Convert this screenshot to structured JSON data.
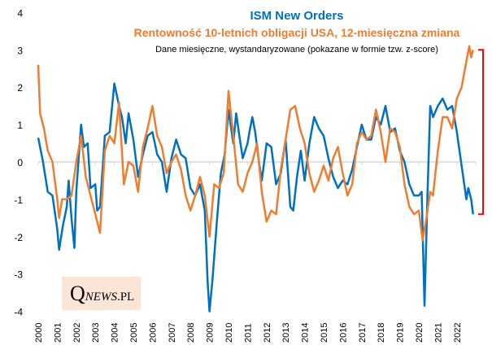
{
  "chart_data": {
    "type": "line",
    "title": "ISM New Orders",
    "subtitle": "Rentowność 10-letnich obligacji USA, 12-miesięczna zmiana",
    "note": "Dane miesięczne, wystandaryzowane (pokazane w formie tzw.  z-score)",
    "ylim": [
      -4,
      4
    ],
    "yticks": [
      "4",
      "3",
      "2",
      "1",
      "0",
      "-1",
      "-2",
      "-3",
      "-4"
    ],
    "xlim": [
      2000,
      2023
    ],
    "xticks": [
      "2000",
      "2001",
      "2002",
      "2003",
      "2004",
      "2005",
      "2006",
      "2007",
      "2008",
      "2009",
      "2010",
      "2011",
      "2012",
      "2013",
      "2014",
      "2015",
      "2016",
      "2017",
      "2018",
      "2019",
      "2020",
      "2021",
      "2022"
    ],
    "grid": false,
    "series": [
      {
        "name": "ISM New Orders",
        "color": "#0070c0",
        "x": [
          2000.0,
          2000.25,
          2000.5,
          2000.75,
          2001.0,
          2001.1,
          2001.3,
          2001.5,
          2001.6,
          2001.75,
          2001.9,
          2002.0,
          2002.25,
          2002.4,
          2002.6,
          2002.75,
          2003.0,
          2003.1,
          2003.25,
          2003.5,
          2003.75,
          2004.0,
          2004.25,
          2004.4,
          2004.6,
          2004.75,
          2005.0,
          2005.25,
          2005.5,
          2005.75,
          2006.0,
          2006.25,
          2006.5,
          2006.75,
          2007.0,
          2007.25,
          2007.5,
          2007.75,
          2008.0,
          2008.25,
          2008.5,
          2008.75,
          2008.9,
          2009.0,
          2009.15,
          2009.4,
          2009.6,
          2009.8,
          2010.0,
          2010.25,
          2010.4,
          2010.6,
          2010.75,
          2011.0,
          2011.1,
          2011.25,
          2011.4,
          2011.6,
          2011.75,
          2012.0,
          2012.25,
          2012.5,
          2012.75,
          2013.0,
          2013.25,
          2013.4,
          2013.6,
          2013.8,
          2014.0,
          2014.25,
          2014.5,
          2014.75,
          2015.0,
          2015.25,
          2015.5,
          2015.75,
          2016.0,
          2016.25,
          2016.5,
          2016.75,
          2017.0,
          2017.25,
          2017.5,
          2017.75,
          2018.0,
          2018.25,
          2018.5,
          2018.75,
          2019.0,
          2019.25,
          2019.5,
          2019.75,
          2020.0,
          2020.15,
          2020.3,
          2020.45,
          2020.6,
          2020.75,
          2021.0,
          2021.25,
          2021.5,
          2021.75,
          2022.0,
          2022.25,
          2022.5,
          2022.6,
          2022.75,
          2022.85
        ],
        "y": [
          0.65,
          0,
          -0.8,
          -0.9,
          -1.8,
          -2.35,
          -1.7,
          -1.2,
          -0.5,
          -1.5,
          -2.3,
          -0.8,
          1.0,
          0.4,
          0.5,
          -0.7,
          -0.6,
          -1.3,
          -1.2,
          0.7,
          0.8,
          2.1,
          1.5,
          1.2,
          0.5,
          1.3,
          0.6,
          -0.4,
          0.2,
          0.7,
          0.8,
          0.2,
          0.0,
          -0.8,
          0.1,
          0.6,
          0.2,
          0.1,
          -0.7,
          -0.9,
          -0.6,
          -1.3,
          -3.2,
          -4.0,
          -3.2,
          -1.5,
          -0.3,
          0.2,
          1.4,
          0.5,
          1.3,
          0.6,
          0.1,
          0.5,
          0.8,
          1.2,
          0.8,
          0.0,
          -0.5,
          0.5,
          0.4,
          -0.6,
          -0.3,
          0.6,
          -1.2,
          -1.3,
          -0.4,
          0.3,
          -0.5,
          0.5,
          1.2,
          0.9,
          0.7,
          0.1,
          -0.4,
          -0.7,
          -0.5,
          -0.6,
          -0.2,
          0.4,
          1.0,
          0.6,
          0.6,
          1.2,
          1.0,
          1.5,
          0.8,
          0.9,
          0.3,
          0.0,
          -0.6,
          -0.9,
          -0.9,
          -0.8,
          -3.85,
          -1.0,
          1.5,
          1.2,
          1.5,
          1.7,
          1.4,
          1.5,
          0.8,
          -0.1,
          -1.0,
          -0.7,
          -1.0,
          -1.4
        ]
      },
      {
        "name": "Rentowność 10-letnich obligacji USA, 12-miesięczna zmiana",
        "color": "#ed7d31",
        "x": [
          2000.0,
          2000.1,
          2000.3,
          2000.5,
          2000.75,
          2001.0,
          2001.1,
          2001.25,
          2001.5,
          2001.75,
          2002.0,
          2002.25,
          2002.5,
          2002.75,
          2003.0,
          2003.25,
          2003.5,
          2003.75,
          2004.0,
          2004.25,
          2004.5,
          2004.75,
          2005.0,
          2005.25,
          2005.5,
          2005.75,
          2006.0,
          2006.25,
          2006.5,
          2006.75,
          2007.0,
          2007.25,
          2007.5,
          2007.75,
          2008.0,
          2008.25,
          2008.5,
          2008.75,
          2009.0,
          2009.25,
          2009.5,
          2009.75,
          2010.0,
          2010.25,
          2010.5,
          2010.75,
          2011.0,
          2011.25,
          2011.5,
          2011.75,
          2012.0,
          2012.25,
          2012.5,
          2012.75,
          2013.0,
          2013.25,
          2013.5,
          2013.75,
          2014.0,
          2014.25,
          2014.5,
          2014.75,
          2015.0,
          2015.25,
          2015.5,
          2015.75,
          2016.0,
          2016.25,
          2016.5,
          2016.75,
          2017.0,
          2017.25,
          2017.5,
          2017.75,
          2018.0,
          2018.25,
          2018.5,
          2018.75,
          2019.0,
          2019.25,
          2019.5,
          2019.75,
          2020.0,
          2020.2,
          2020.4,
          2020.6,
          2020.75,
          2021.0,
          2021.25,
          2021.5,
          2021.75,
          2022.0,
          2022.25,
          2022.5,
          2022.65,
          2022.75,
          2022.85
        ],
        "y": [
          2.6,
          1.3,
          0.9,
          0.3,
          0.0,
          -1.0,
          -1.5,
          -1.0,
          -1.0,
          -0.9,
          0.0,
          0.7,
          -0.4,
          -0.9,
          -1.4,
          -1.9,
          0.3,
          0.7,
          0.5,
          1.6,
          -0.6,
          0.0,
          -0.1,
          -0.8,
          0.4,
          0.9,
          1.5,
          0.7,
          0.4,
          -0.3,
          0.0,
          0.2,
          -0.2,
          -0.9,
          -1.3,
          -0.9,
          -0.4,
          -0.9,
          -2.0,
          -0.6,
          -0.7,
          -0.3,
          1.9,
          0.7,
          -0.6,
          -0.8,
          -0.3,
          0.0,
          0.5,
          -0.8,
          -1.6,
          -1.3,
          -1.4,
          -0.2,
          0.6,
          1.4,
          1.5,
          0.9,
          0.5,
          -0.3,
          -0.8,
          -0.5,
          -0.1,
          -0.5,
          0.1,
          0.4,
          -0.3,
          -0.9,
          -0.6,
          0.5,
          0.8,
          0.6,
          0.7,
          1.4,
          0.8,
          0.0,
          0.9,
          0.8,
          0.4,
          -0.6,
          -1.2,
          -1.4,
          -1.3,
          -2.1,
          -1.5,
          -0.8,
          -0.9,
          0.3,
          1.2,
          1.2,
          0.9,
          1.7,
          2.0,
          2.7,
          3.1,
          2.8,
          3.0
        ]
      }
    ],
    "annotations": {
      "bracket_color": "#ff0000",
      "bracket_range": [
        -1.4,
        3.0
      ]
    },
    "logo": "QNEWS.PL"
  }
}
